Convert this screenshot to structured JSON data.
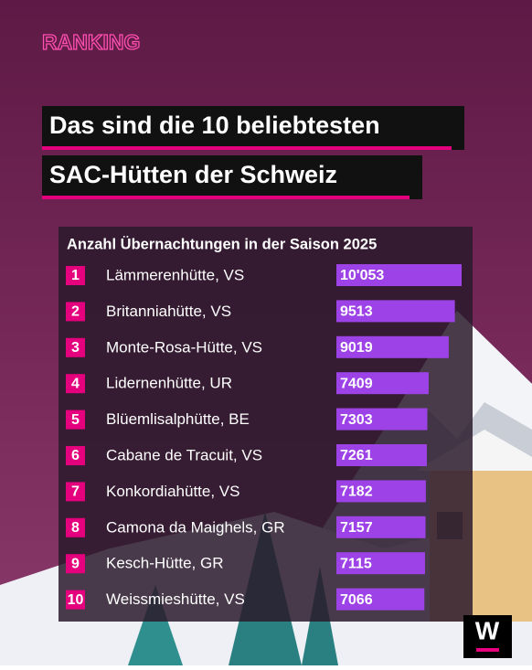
{
  "kicker": "RANKING",
  "logo": "W",
  "chart_data": {
    "type": "bar",
    "orientation": "horizontal",
    "title": [
      "Das sind die 10 beliebtesten",
      "SAC-Hütten der Schweiz"
    ],
    "subtitle": "Anzahl Übernachtungen in der Saison 2025",
    "ranks": [
      1,
      2,
      3,
      4,
      5,
      6,
      7,
      8,
      9,
      10
    ],
    "categories": [
      "Lämmerenhütte, VS",
      "Britanniahütte, VS",
      "Monte-Rosa-Hütte, VS",
      "Lidernenhütte, UR",
      "Blüemlisalphütte, BE",
      "Cabane de Tracuit, VS",
      "Konkordiahütte, VS",
      "Camona da Maighels, GR",
      "Kesch-Hütte, GR",
      "Weissmieshütte, VS"
    ],
    "values": [
      10053,
      9513,
      9019,
      7409,
      7303,
      7261,
      7182,
      7157,
      7115,
      7066
    ],
    "value_labels": [
      "10'053",
      "9513",
      "9019",
      "7409",
      "7303",
      "7261",
      "7182",
      "7157",
      "7115",
      "7066"
    ],
    "color": "#9d42e6"
  }
}
